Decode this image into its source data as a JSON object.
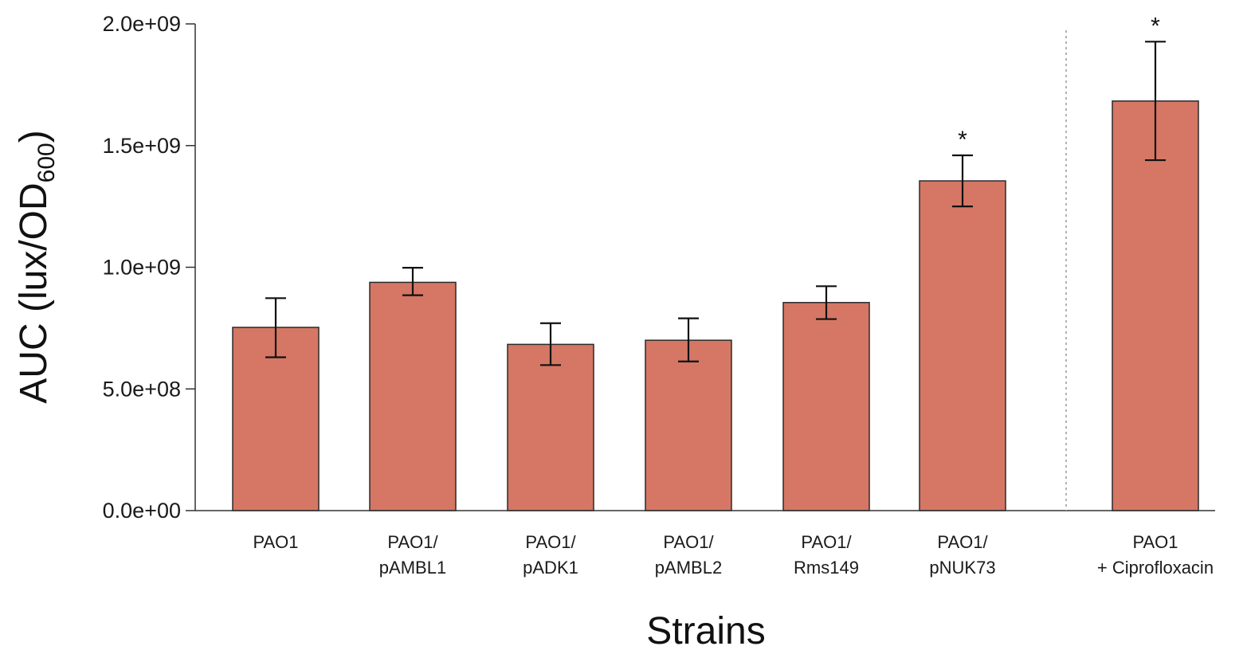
{
  "chart_data": {
    "type": "bar",
    "xlabel": "Strains",
    "ylabel": {
      "prefix": "AUC (lux/OD",
      "subscript": "600",
      "suffix": ")"
    },
    "ylim": [
      0,
      2000000000
    ],
    "yticks": [
      {
        "value": 0,
        "label": "0.0e+00"
      },
      {
        "value": 500000000,
        "label": "5.0e+08"
      },
      {
        "value": 1000000000,
        "label": "1.0e+09"
      },
      {
        "value": 1500000000,
        "label": "1.5e+09"
      },
      {
        "value": 2000000000,
        "label": "2.0e+09"
      }
    ],
    "categories": [
      [
        "PAO1"
      ],
      [
        "PAO1/",
        "pAMBL1"
      ],
      [
        "PAO1/",
        "pADK1"
      ],
      [
        "PAO1/",
        "pAMBL2"
      ],
      [
        "PAO1/",
        "Rms149"
      ],
      [
        "PAO1/",
        "pNUK73"
      ],
      [
        "PAO1",
        "+ Ciprofloxacin"
      ]
    ],
    "values": [
      753000000,
      938000000,
      683000000,
      700000000,
      855000000,
      1355000000,
      1683000000
    ],
    "error_low": [
      630000000,
      885000000,
      598000000,
      613000000,
      787000000,
      1250000000,
      1440000000
    ],
    "error_high": [
      873000000,
      998000000,
      770000000,
      790000000,
      922000000,
      1460000000,
      1927000000
    ],
    "significance": [
      "",
      "",
      "",
      "",
      "",
      "*",
      "*"
    ],
    "separator_after_index": 5,
    "grid": false,
    "colors": {
      "bar_fill": "#d57764",
      "bar_stroke": "#2a2a2a",
      "axis": "#333333",
      "separator": "#999999"
    }
  }
}
